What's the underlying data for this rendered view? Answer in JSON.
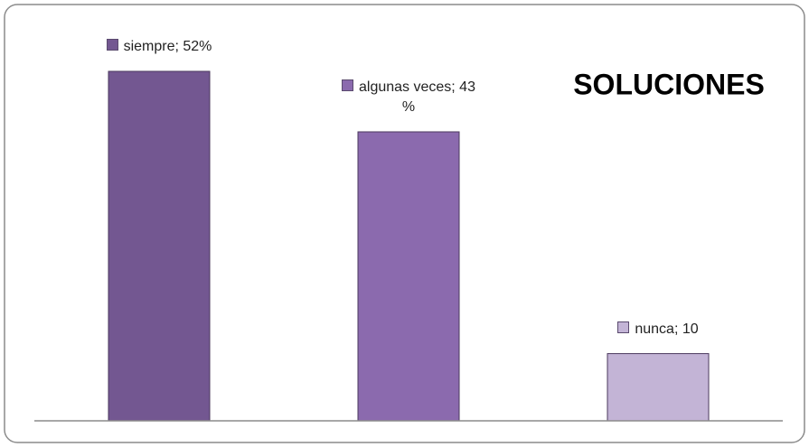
{
  "chart_data": {
    "type": "bar",
    "title": "SOLUCIONES",
    "values": [
      52,
      43,
      10
    ],
    "value_labels": [
      "siempre; 52%",
      "algunas veces; 43 %",
      "nunca; 10"
    ],
    "colors": [
      "#735791",
      "#8b6aae",
      "#c3b4d6"
    ],
    "ylim": [
      0,
      52
    ]
  }
}
